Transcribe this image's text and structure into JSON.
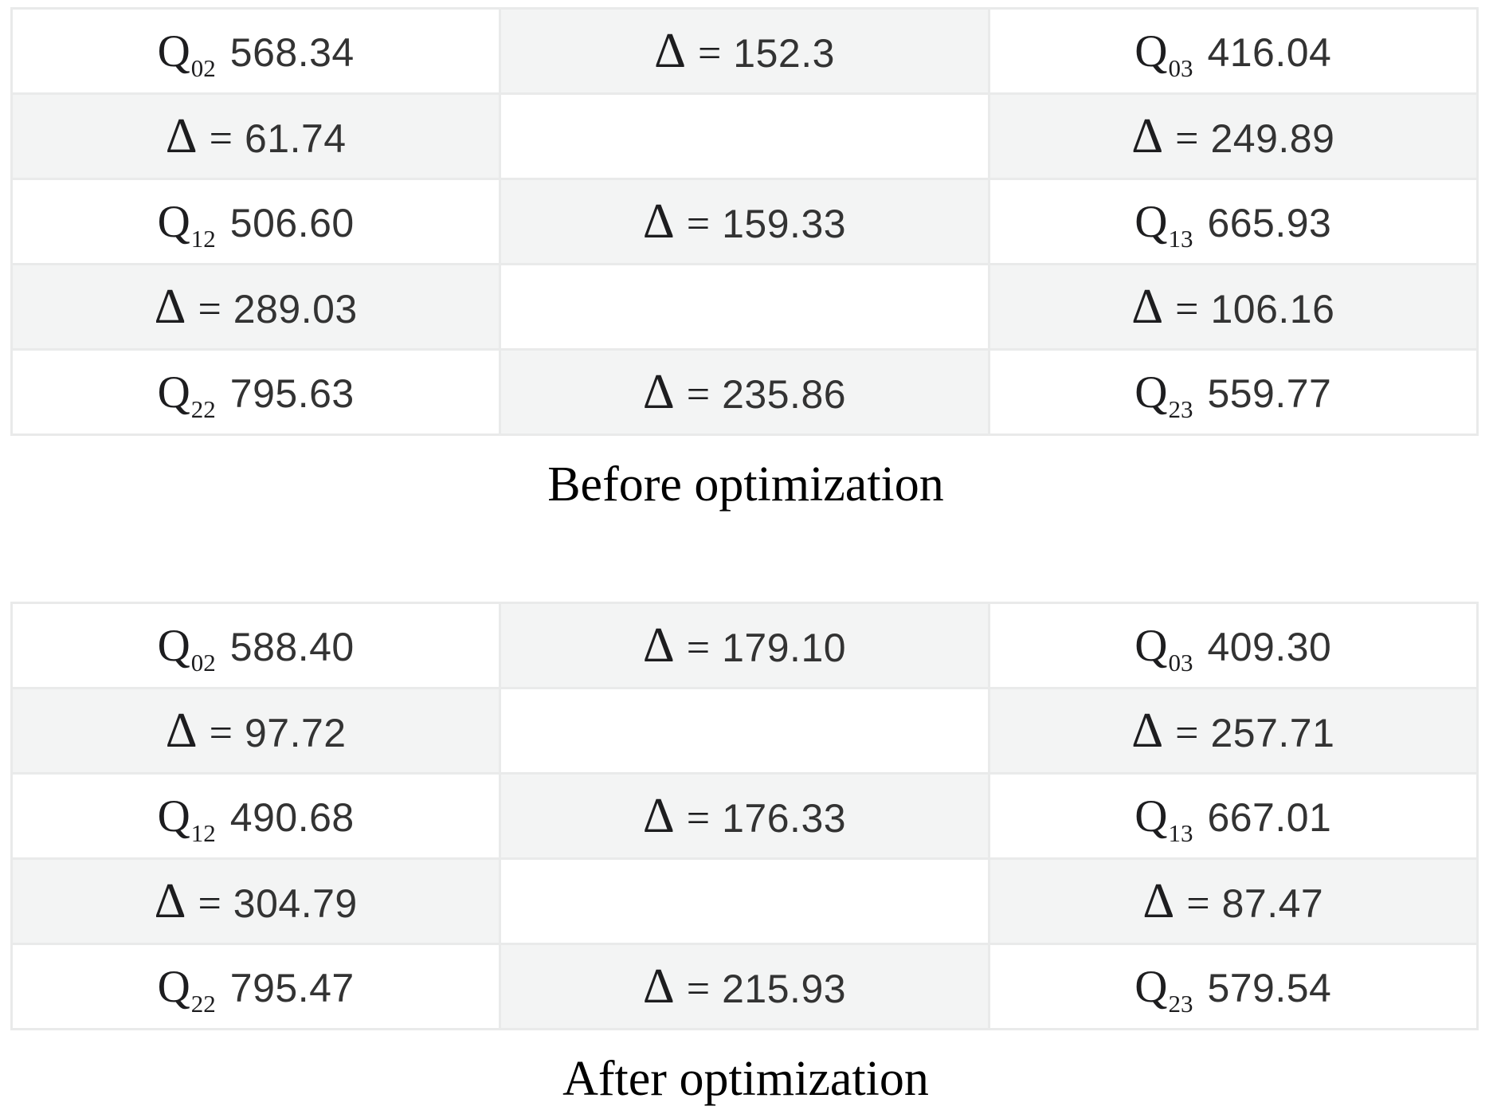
{
  "colors": {
    "background": "#ffffff",
    "cell_shaded": "#f3f4f4",
    "cell_plain": "#ffffff",
    "cell_border": "#e9eaea",
    "math_text": "#1d1d1f",
    "number_text": "#333333",
    "caption_text": "#000000"
  },
  "symbols": {
    "q_base": "Q",
    "delta": "Δ",
    "equals": "="
  },
  "tables": [
    {
      "caption": "Before optimization",
      "rows": [
        [
          {
            "type": "q",
            "sub": "02",
            "value": "568.34"
          },
          {
            "type": "delta",
            "value": "152.3"
          },
          {
            "type": "q",
            "sub": "03",
            "value": "416.04"
          }
        ],
        [
          {
            "type": "delta",
            "value": "61.74"
          },
          {
            "type": "empty"
          },
          {
            "type": "delta",
            "value": "249.89"
          }
        ],
        [
          {
            "type": "q",
            "sub": "12",
            "value": "506.60"
          },
          {
            "type": "delta",
            "value": "159.33"
          },
          {
            "type": "q",
            "sub": "13",
            "value": "665.93"
          }
        ],
        [
          {
            "type": "delta",
            "value": "289.03"
          },
          {
            "type": "empty"
          },
          {
            "type": "delta",
            "value": "106.16"
          }
        ],
        [
          {
            "type": "q",
            "sub": "22",
            "value": "795.63"
          },
          {
            "type": "delta",
            "value": "235.86"
          },
          {
            "type": "q",
            "sub": "23",
            "value": "559.77"
          }
        ]
      ]
    },
    {
      "caption": "After optimization",
      "rows": [
        [
          {
            "type": "q",
            "sub": "02",
            "value": "588.40"
          },
          {
            "type": "delta",
            "value": "179.10"
          },
          {
            "type": "q",
            "sub": "03",
            "value": "409.30"
          }
        ],
        [
          {
            "type": "delta",
            "value": "97.72"
          },
          {
            "type": "empty"
          },
          {
            "type": "delta",
            "value": "257.71"
          }
        ],
        [
          {
            "type": "q",
            "sub": "12",
            "value": "490.68"
          },
          {
            "type": "delta",
            "value": "176.33"
          },
          {
            "type": "q",
            "sub": "13",
            "value": "667.01"
          }
        ],
        [
          {
            "type": "delta",
            "value": "304.79"
          },
          {
            "type": "empty"
          },
          {
            "type": "delta",
            "value": "87.47"
          }
        ],
        [
          {
            "type": "q",
            "sub": "22",
            "value": "795.47"
          },
          {
            "type": "delta",
            "value": "215.93"
          },
          {
            "type": "q",
            "sub": "23",
            "value": "579.54"
          }
        ]
      ]
    }
  ]
}
